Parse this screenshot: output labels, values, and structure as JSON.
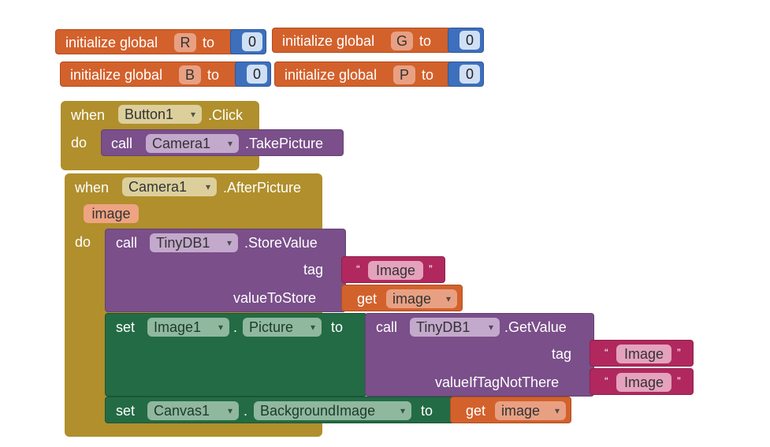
{
  "globals": [
    {
      "label": "initialize global",
      "name": "R",
      "to": "to",
      "value": "0"
    },
    {
      "label": "initialize global",
      "name": "G",
      "to": "to",
      "value": "0"
    },
    {
      "label": "initialize global",
      "name": "B",
      "to": "to",
      "value": "0"
    },
    {
      "label": "initialize global",
      "name": "P",
      "to": "to",
      "value": "0"
    }
  ],
  "event1": {
    "when": "when",
    "component": "Button1",
    "event": ".Click",
    "do": "do",
    "call": "call",
    "call_component": "Camera1",
    "method": ".TakePicture"
  },
  "event2": {
    "when": "when",
    "component": "Camera1",
    "event": ".AfterPicture",
    "param": "image",
    "do": "do",
    "store": {
      "call": "call",
      "component": "TinyDB1",
      "method": ".StoreValue",
      "tag_label": "tag",
      "tag_open": "“",
      "tag_value": "Image",
      "tag_close": "”",
      "value_label": "valueToStore",
      "get": "get",
      "get_var": "image"
    },
    "set1": {
      "set": "set",
      "component": "Image1",
      "dot": ".",
      "property": "Picture",
      "to": "to",
      "call": "call",
      "call_component": "TinyDB1",
      "method": ".GetValue",
      "tag_label": "tag",
      "tag_open": "“",
      "tag_value": "Image",
      "tag_close": "”",
      "default_label": "valueIfTagNotThere",
      "default_open": "“",
      "default_value": "Image",
      "default_close": "”"
    },
    "set2": {
      "set": "set",
      "component": "Canvas1",
      "dot": ".",
      "property": "BackgroundImage",
      "to": "to",
      "get": "get",
      "get_var": "image"
    }
  },
  "colors": {
    "variables": "#d3612c",
    "math": "#3d6fbd",
    "control": "#b08f2c",
    "procedures": "#7a4f8a",
    "setters": "#236b45",
    "text": "#b0285e"
  }
}
